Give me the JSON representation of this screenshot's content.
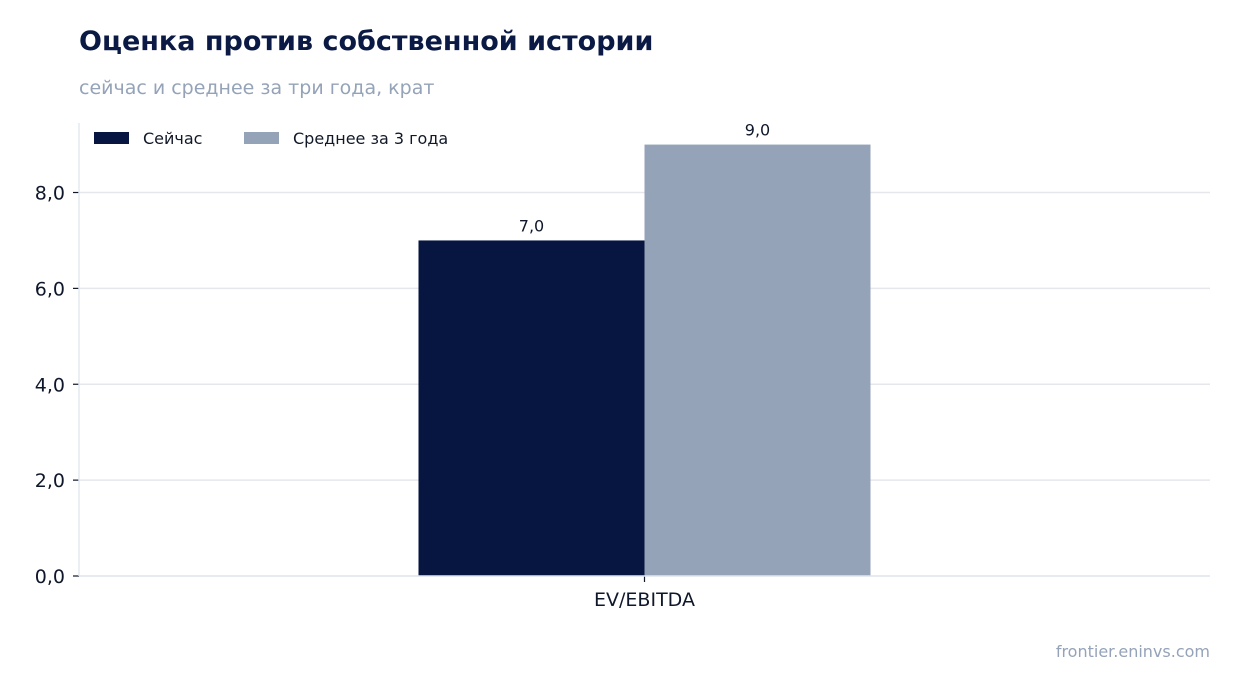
{
  "header": {
    "title": "Оценка против собственной истории",
    "subtitle": "сейчас и среднее за три года, крат"
  },
  "footer": {
    "source": "frontier.eninvs.com"
  },
  "colors": {
    "now": "#071640",
    "avg": "#94a3b8",
    "grid": "#e5e7eb",
    "axis_text": "#0f172a"
  },
  "chart_data": {
    "type": "bar",
    "categories": [
      "EV/EBITDA"
    ],
    "series": [
      {
        "name": "Сейчас",
        "values": [
          7.0
        ],
        "labels": [
          "7,0"
        ],
        "color": "#071640"
      },
      {
        "name": "Среднее за 3 года",
        "values": [
          9.0
        ],
        "labels": [
          "9,0"
        ],
        "color": "#94a3b8"
      }
    ],
    "ylim": [
      0,
      9.45
    ],
    "yticks": [
      0,
      2,
      4,
      6,
      8
    ],
    "ytick_labels": [
      "0,0",
      "2,0",
      "4,0",
      "6,0",
      "8,0"
    ],
    "grid": true,
    "legend": "top-left",
    "title": "Оценка против собственной истории",
    "subtitle": "сейчас и среднее за три года, крат",
    "xlabel": "",
    "ylabel": ""
  }
}
